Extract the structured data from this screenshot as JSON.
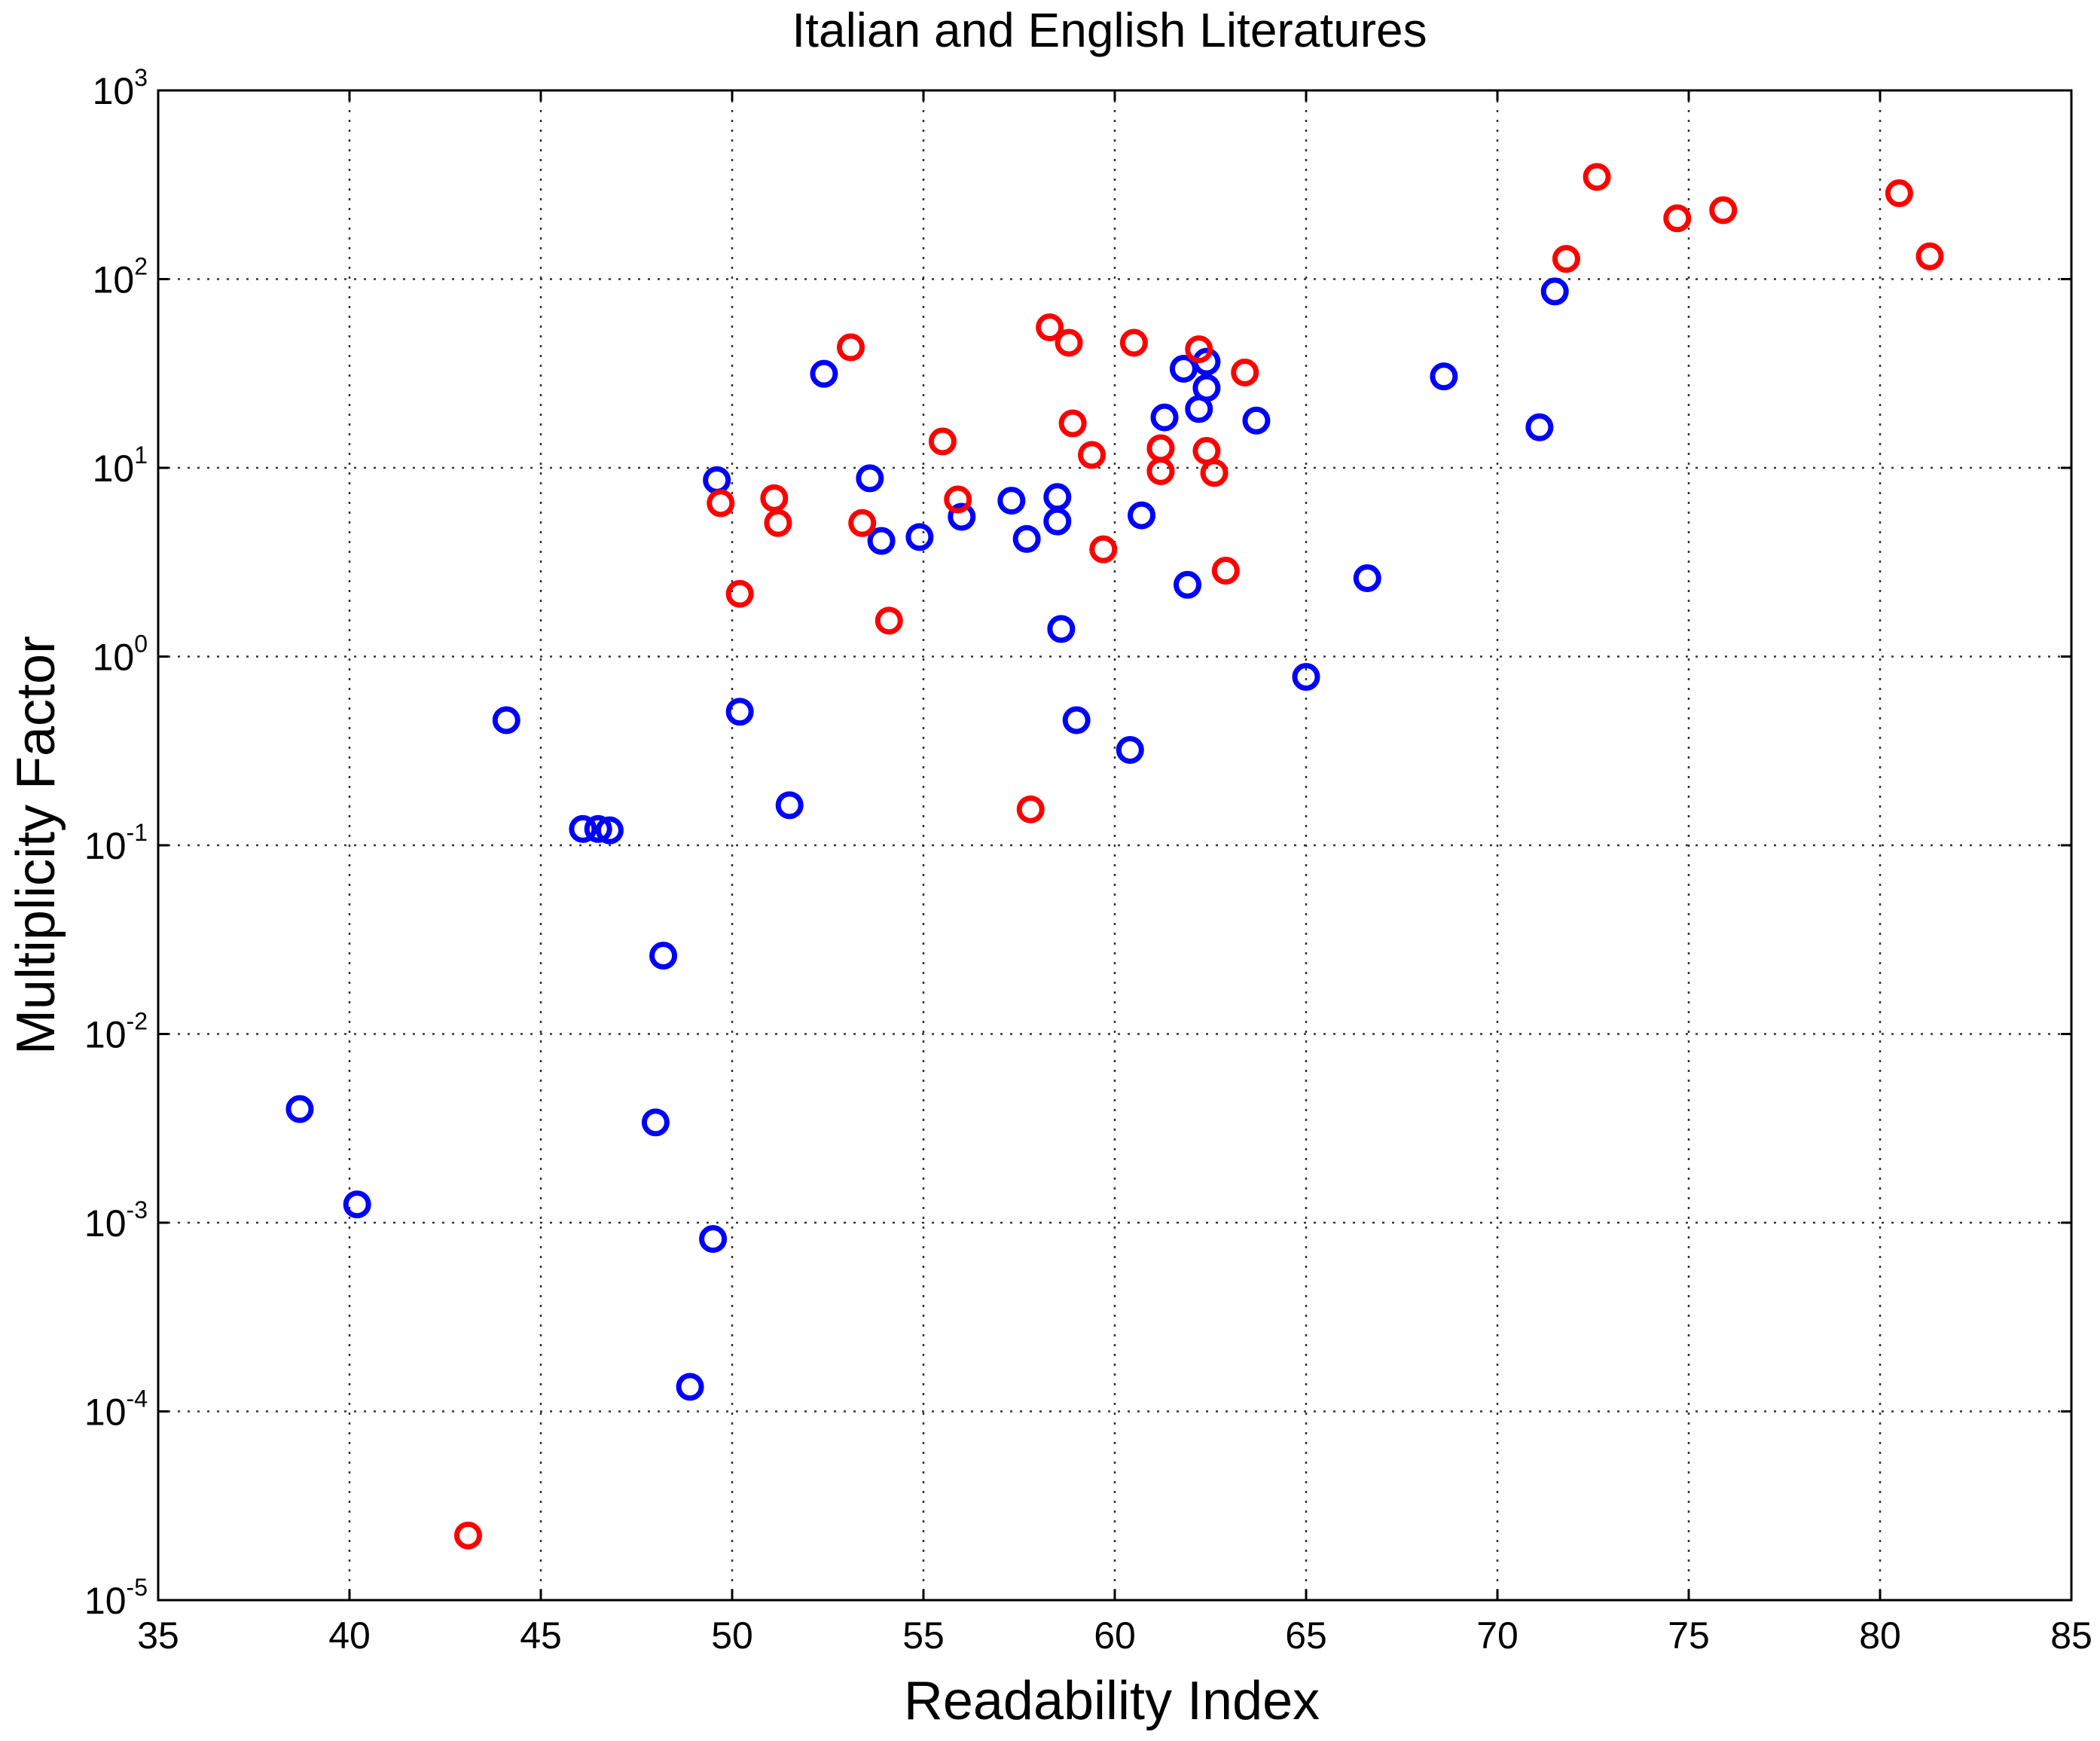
{
  "chart_data": {
    "type": "scatter",
    "title": "Italian and English Literatures",
    "xlabel": "Readability Index",
    "ylabel": "Multiplicity Factor",
    "xlim": [
      35,
      85
    ],
    "ylim": [
      1e-05,
      1000
    ],
    "yscale": "log",
    "grid": true,
    "marker": "circle-open",
    "xticks": [
      "35",
      "40",
      "45",
      "50",
      "55",
      "60",
      "65",
      "70",
      "75",
      "80",
      "85"
    ],
    "yticks": [
      {
        "base": "10",
        "exp": "-5"
      },
      {
        "base": "10",
        "exp": "-4"
      },
      {
        "base": "10",
        "exp": "-3"
      },
      {
        "base": "10",
        "exp": "-2"
      },
      {
        "base": "10",
        "exp": "-1"
      },
      {
        "base": "10",
        "exp": "0"
      },
      {
        "base": "10",
        "exp": "1"
      },
      {
        "base": "10",
        "exp": "2"
      },
      {
        "base": "10",
        "exp": "3"
      }
    ],
    "series": [
      {
        "color": "#0000ff",
        "points": [
          {
            "x": 38.7,
            "y": 0.004
          },
          {
            "x": 40.2,
            "y": 0.00125
          },
          {
            "x": 44.1,
            "y": 0.46
          },
          {
            "x": 46.1,
            "y": 0.122
          },
          {
            "x": 46.5,
            "y": 0.122
          },
          {
            "x": 46.8,
            "y": 0.12
          },
          {
            "x": 48.0,
            "y": 0.0034
          },
          {
            "x": 48.2,
            "y": 0.026
          },
          {
            "x": 48.9,
            "y": 0.000135
          },
          {
            "x": 49.5,
            "y": 0.00082
          },
          {
            "x": 49.6,
            "y": 8.6
          },
          {
            "x": 50.2,
            "y": 0.51
          },
          {
            "x": 51.5,
            "y": 0.163
          },
          {
            "x": 52.4,
            "y": 31.5
          },
          {
            "x": 53.6,
            "y": 8.8
          },
          {
            "x": 53.9,
            "y": 4.1
          },
          {
            "x": 54.9,
            "y": 4.3
          },
          {
            "x": 56.0,
            "y": 5.5
          },
          {
            "x": 57.3,
            "y": 6.7
          },
          {
            "x": 57.7,
            "y": 4.2
          },
          {
            "x": 58.5,
            "y": 7.0
          },
          {
            "x": 58.5,
            "y": 5.2
          },
          {
            "x": 58.6,
            "y": 1.4
          },
          {
            "x": 59.0,
            "y": 0.46
          },
          {
            "x": 60.4,
            "y": 0.32
          },
          {
            "x": 60.7,
            "y": 5.6
          },
          {
            "x": 61.3,
            "y": 18.5
          },
          {
            "x": 61.8,
            "y": 33.5
          },
          {
            "x": 61.9,
            "y": 2.4
          },
          {
            "x": 62.2,
            "y": 20.5
          },
          {
            "x": 62.4,
            "y": 36.5
          },
          {
            "x": 62.4,
            "y": 26.5
          },
          {
            "x": 63.7,
            "y": 17.8
          },
          {
            "x": 65.0,
            "y": 0.78
          },
          {
            "x": 66.6,
            "y": 2.6
          },
          {
            "x": 68.6,
            "y": 30.5
          },
          {
            "x": 71.1,
            "y": 16.4
          },
          {
            "x": 71.5,
            "y": 86.0
          }
        ]
      },
      {
        "color": "#ff0000",
        "points": [
          {
            "x": 43.1,
            "y": 2.2e-05
          },
          {
            "x": 49.7,
            "y": 6.5
          },
          {
            "x": 50.2,
            "y": 2.15
          },
          {
            "x": 51.1,
            "y": 6.9
          },
          {
            "x": 51.2,
            "y": 5.1
          },
          {
            "x": 53.1,
            "y": 43.5
          },
          {
            "x": 53.4,
            "y": 5.1
          },
          {
            "x": 54.1,
            "y": 1.55
          },
          {
            "x": 55.5,
            "y": 13.8
          },
          {
            "x": 55.9,
            "y": 6.8
          },
          {
            "x": 57.8,
            "y": 0.155
          },
          {
            "x": 58.3,
            "y": 55.5
          },
          {
            "x": 58.8,
            "y": 46.0
          },
          {
            "x": 58.9,
            "y": 17.2
          },
          {
            "x": 59.4,
            "y": 11.7
          },
          {
            "x": 59.7,
            "y": 3.7
          },
          {
            "x": 60.5,
            "y": 46.0
          },
          {
            "x": 61.2,
            "y": 12.7
          },
          {
            "x": 61.2,
            "y": 9.6
          },
          {
            "x": 62.2,
            "y": 42.5
          },
          {
            "x": 62.4,
            "y": 12.3
          },
          {
            "x": 62.6,
            "y": 9.4
          },
          {
            "x": 62.9,
            "y": 2.85
          },
          {
            "x": 63.4,
            "y": 32.0
          },
          {
            "x": 71.8,
            "y": 128.0
          },
          {
            "x": 72.6,
            "y": 348.0
          },
          {
            "x": 74.7,
            "y": 210.0
          },
          {
            "x": 75.9,
            "y": 232.0
          },
          {
            "x": 80.5,
            "y": 285.0
          },
          {
            "x": 81.3,
            "y": 132.0
          }
        ]
      }
    ]
  }
}
